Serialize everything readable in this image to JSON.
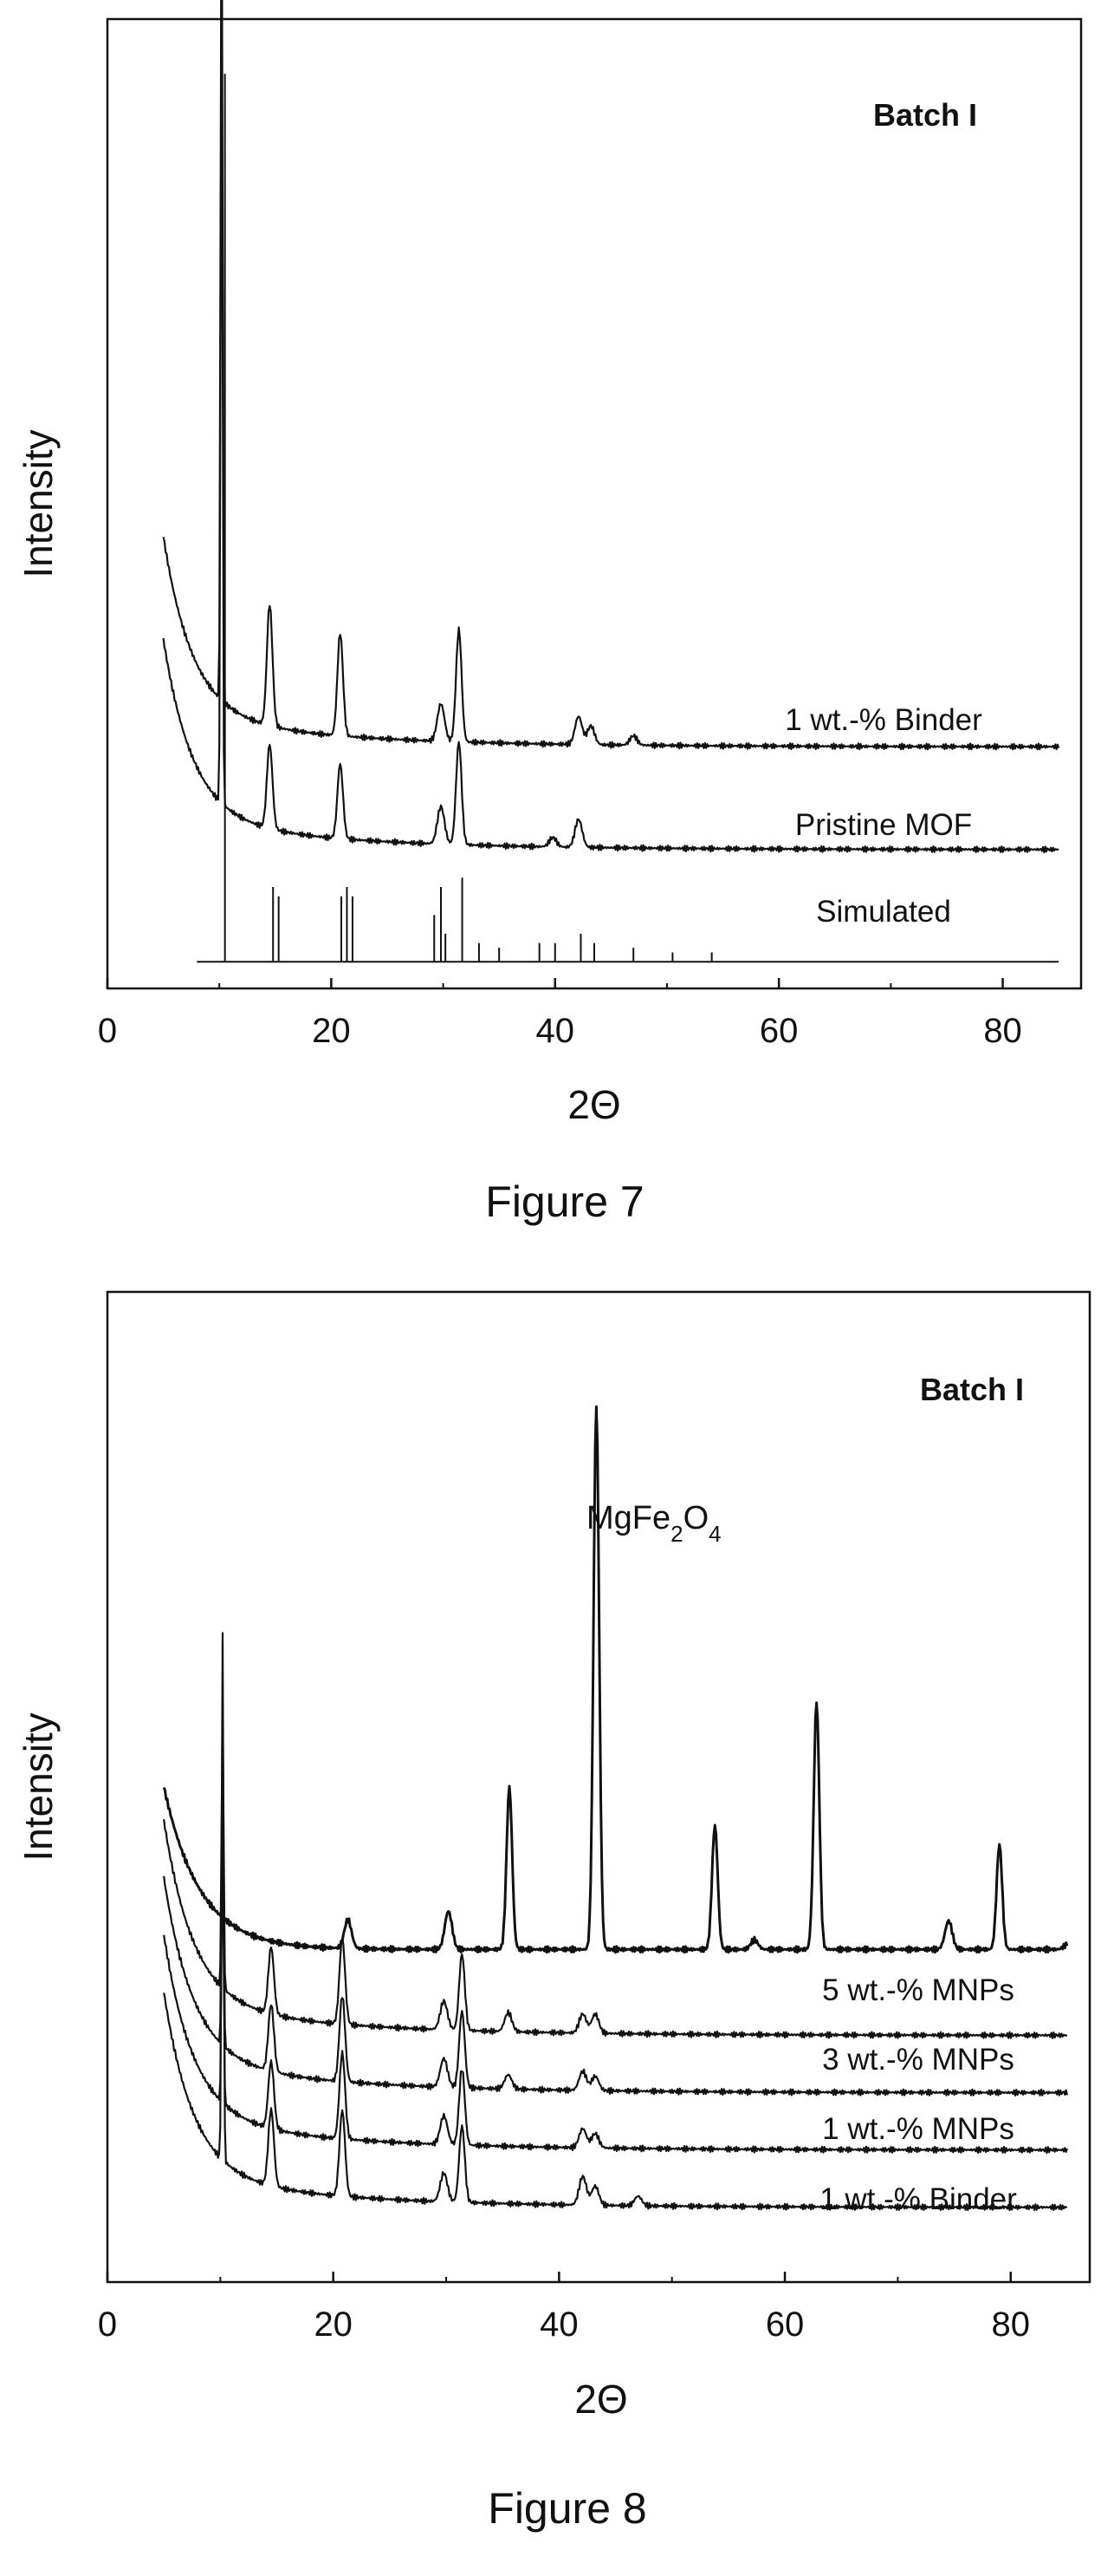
{
  "figures": [
    {
      "caption": "Figure 7",
      "batch_label": "Batch I",
      "xlabel": "2Θ",
      "ylabel": "Intensity",
      "xticks": [
        0,
        20,
        40,
        60,
        80
      ],
      "series_labels": [
        "1 wt.-% Binder",
        "Pristine MOF",
        "Simulated"
      ]
    },
    {
      "caption": "Figure 8",
      "batch_label": "Batch I",
      "xlabel": "2Θ",
      "ylabel": "Intensity",
      "xticks": [
        0,
        20,
        40,
        60,
        80
      ],
      "annotation": {
        "base": "MgFe",
        "sub1": "2",
        "mid": "O",
        "sub2": "4"
      },
      "series_labels": [
        "5 wt.-% MNPs",
        "3 wt.-% MNPs",
        "1 wt.-% MNPs",
        "1 wt.-% Binder"
      ]
    }
  ],
  "chart_data": [
    {
      "type": "line",
      "title": "Batch I",
      "xlabel": "2Θ",
      "ylabel": "Intensity",
      "xlim": [
        0,
        87
      ],
      "grid": false,
      "legend": "inline labels at right of each trace",
      "series": [
        {
          "name": "1 wt.-% Binder",
          "baseline": 0.24,
          "peaks": [
            [
              10.2,
              0.95
            ],
            [
              14.5,
              0.13
            ],
            [
              20.8,
              0.11
            ],
            [
              29.8,
              0.04
            ],
            [
              31.4,
              0.12
            ],
            [
              42.1,
              0.03
            ],
            [
              43.2,
              0.02
            ],
            [
              47.0,
              0.01
            ]
          ]
        },
        {
          "name": "Pristine MOF",
          "baseline": 0.13,
          "peaks": [
            [
              10.2,
              0.93
            ],
            [
              14.5,
              0.09
            ],
            [
              20.8,
              0.08
            ],
            [
              29.8,
              0.04
            ],
            [
              31.4,
              0.11
            ],
            [
              39.8,
              0.01
            ],
            [
              42.1,
              0.03
            ]
          ]
        },
        {
          "name": "Simulated",
          "type": "stick",
          "sticks": [
            [
              10.5,
              0.95
            ],
            [
              14.8,
              0.08
            ],
            [
              15.3,
              0.07
            ],
            [
              20.9,
              0.07
            ],
            [
              21.4,
              0.08
            ],
            [
              21.9,
              0.07
            ],
            [
              29.2,
              0.05
            ],
            [
              29.8,
              0.08
            ],
            [
              30.2,
              0.03
            ],
            [
              31.7,
              0.09
            ],
            [
              33.2,
              0.02
            ],
            [
              35.0,
              0.015
            ],
            [
              38.6,
              0.02
            ],
            [
              40.0,
              0.02
            ],
            [
              42.3,
              0.03
            ],
            [
              43.5,
              0.02
            ],
            [
              47.0,
              0.015
            ],
            [
              50.5,
              0.01
            ],
            [
              54.0,
              0.01
            ]
          ]
        }
      ]
    },
    {
      "type": "line",
      "title": "Batch I",
      "xlabel": "2Θ",
      "ylabel": "Intensity",
      "xlim": [
        0,
        87
      ],
      "grid": false,
      "legend": "inline labels at right of each trace",
      "series": [
        {
          "name": "MgFe2O4",
          "baseline": 0.33,
          "peaks": [
            [
              21.3,
              0.03
            ],
            [
              30.2,
              0.04
            ],
            [
              35.6,
              0.17
            ],
            [
              43.3,
              0.57
            ],
            [
              53.8,
              0.13
            ],
            [
              57.3,
              0.01
            ],
            [
              62.8,
              0.26
            ],
            [
              74.5,
              0.03
            ],
            [
              79.0,
              0.11
            ],
            [
              85.0,
              0.005
            ]
          ]
        },
        {
          "name": "5 wt.-% MNPs",
          "baseline": 0.24,
          "peaks": [
            [
              10.2,
              0.3
            ],
            [
              14.5,
              0.07
            ],
            [
              20.8,
              0.09
            ],
            [
              29.8,
              0.03
            ],
            [
              31.4,
              0.08
            ],
            [
              35.5,
              0.02
            ],
            [
              42.1,
              0.02
            ],
            [
              43.2,
              0.02
            ]
          ]
        },
        {
          "name": "3 wt.-% MNPs",
          "baseline": 0.18,
          "peaks": [
            [
              10.2,
              0.3
            ],
            [
              14.5,
              0.07
            ],
            [
              20.8,
              0.09
            ],
            [
              29.8,
              0.03
            ],
            [
              31.4,
              0.08
            ],
            [
              35.5,
              0.015
            ],
            [
              42.1,
              0.02
            ],
            [
              43.2,
              0.015
            ]
          ]
        },
        {
          "name": "1 wt.-% MNPs",
          "baseline": 0.12,
          "peaks": [
            [
              10.2,
              0.3
            ],
            [
              14.5,
              0.07
            ],
            [
              20.8,
              0.09
            ],
            [
              29.8,
              0.03
            ],
            [
              31.4,
              0.08
            ],
            [
              42.1,
              0.02
            ],
            [
              43.2,
              0.015
            ]
          ]
        },
        {
          "name": "1 wt.-% Binder",
          "baseline": 0.06,
          "peaks": [
            [
              10.2,
              0.55
            ],
            [
              14.5,
              0.08
            ],
            [
              20.8,
              0.09
            ],
            [
              29.8,
              0.03
            ],
            [
              31.4,
              0.08
            ],
            [
              42.1,
              0.03
            ],
            [
              43.2,
              0.02
            ],
            [
              47.0,
              0.01
            ]
          ]
        }
      ]
    }
  ]
}
